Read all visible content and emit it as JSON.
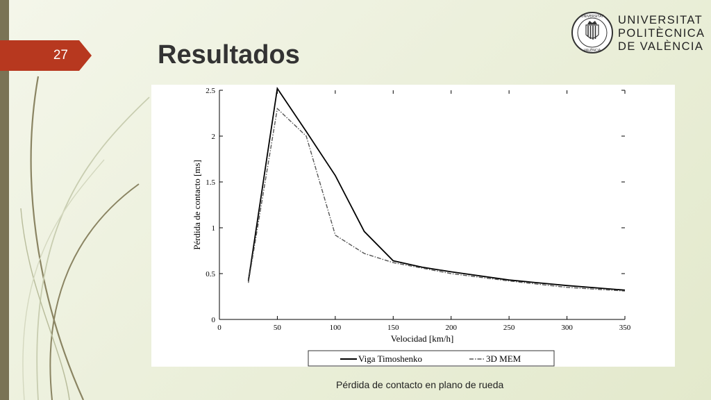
{
  "slide": {
    "number": "27",
    "title": "Resultados",
    "caption": "Pérdida de contacto en plano de rueda"
  },
  "logo": {
    "line1": "UNIVERSITAT",
    "line2": "POLITÈCNICA",
    "line3": "DE VALÈNCIA",
    "seal_text": "UNIVERSITAT POLITÈCNICA DE VALÈNCIA"
  },
  "colors": {
    "accent": "#b7381f",
    "sidebar": "#7a7355",
    "background": "#eef1df"
  },
  "chart_data": {
    "type": "line",
    "title": "",
    "xlabel": "Velocidad [km/h]",
    "ylabel": "Pérdida de contacto [ms]",
    "xlim": [
      0,
      350
    ],
    "ylim": [
      0,
      2.5
    ],
    "xticks": [
      "0",
      "50",
      "100",
      "150",
      "200",
      "250",
      "300",
      "350"
    ],
    "yticks": [
      "0",
      "0.5",
      "1",
      "1.5",
      "2",
      "2.5"
    ],
    "grid": false,
    "legend_position": "bottom",
    "series": [
      {
        "name": "Viga Timoshenko",
        "style": "solid",
        "color": "#000000",
        "x": [
          25,
          50,
          75,
          100,
          125,
          150,
          175,
          200,
          250,
          300,
          350
        ],
        "y": [
          0.42,
          2.52,
          2.05,
          1.57,
          0.96,
          0.64,
          0.57,
          0.52,
          0.43,
          0.37,
          0.32
        ]
      },
      {
        "name": "3D MEM",
        "style": "dashdot",
        "color": "#555555",
        "x": [
          25,
          50,
          75,
          100,
          125,
          150,
          175,
          200,
          250,
          300,
          350
        ],
        "y": [
          0.4,
          2.3,
          2.0,
          0.92,
          0.72,
          0.62,
          0.56,
          0.5,
          0.42,
          0.35,
          0.31
        ]
      }
    ]
  }
}
